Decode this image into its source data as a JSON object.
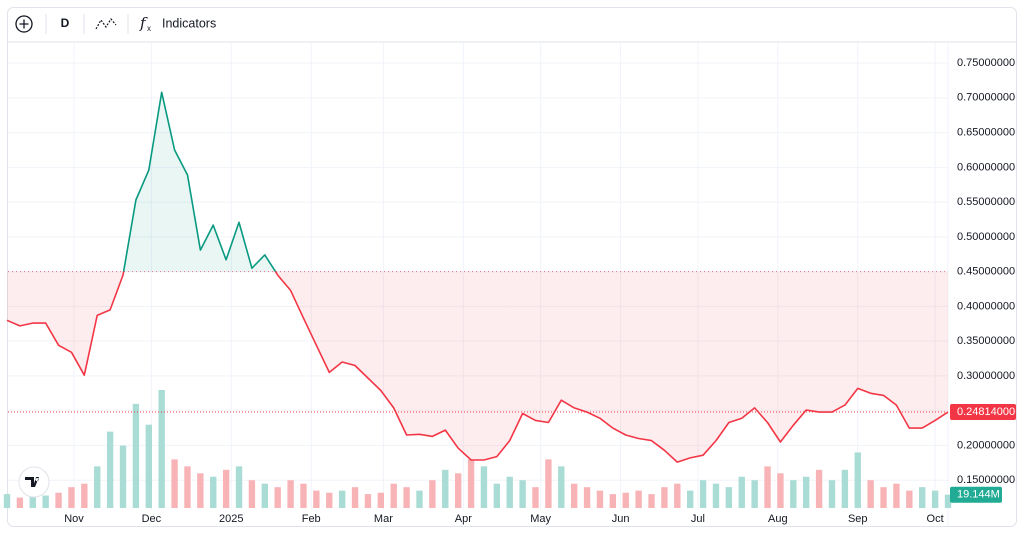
{
  "toolbar": {
    "interval": "D",
    "indicators": "Indicators"
  },
  "chart_data": {
    "type": "line",
    "x": [
      0,
      5,
      10,
      15,
      20,
      25,
      30,
      35,
      40,
      45,
      50,
      55,
      60,
      65,
      70,
      75,
      80,
      85,
      90,
      95,
      100,
      105,
      110,
      115,
      120,
      125,
      130,
      135,
      140,
      145,
      150,
      155,
      160,
      165,
      170,
      175,
      180,
      185,
      190,
      195,
      200,
      205,
      210,
      215,
      220,
      225,
      230,
      235,
      240,
      245,
      250,
      255,
      260,
      265,
      270,
      275,
      280,
      285,
      290,
      295,
      300,
      305,
      310,
      315,
      320,
      325,
      330,
      335,
      340,
      345,
      350,
      355,
      360,
      365
    ],
    "series": [
      {
        "name": "Price",
        "up_color": "#089981",
        "down_color": "#f23645",
        "values": [
          0.38,
          0.372,
          0.376,
          0.376,
          0.344,
          0.334,
          0.301,
          0.387,
          0.395,
          0.445,
          0.553,
          0.596,
          0.708,
          0.625,
          0.589,
          0.481,
          0.517,
          0.467,
          0.521,
          0.455,
          0.474,
          0.445,
          0.423,
          0.383,
          0.344,
          0.305,
          0.32,
          0.315,
          0.297,
          0.279,
          0.254,
          0.215,
          0.216,
          0.213,
          0.222,
          0.196,
          0.179,
          0.179,
          0.184,
          0.207,
          0.246,
          0.236,
          0.233,
          0.265,
          0.254,
          0.248,
          0.239,
          0.225,
          0.215,
          0.21,
          0.207,
          0.193,
          0.176,
          0.182,
          0.186,
          0.207,
          0.233,
          0.239,
          0.254,
          0.233,
          0.205,
          0.229,
          0.251,
          0.248,
          0.248,
          0.258,
          0.282,
          0.275,
          0.272,
          0.258,
          0.225,
          0.225,
          0.236,
          0.248
        ]
      },
      {
        "name": "Volume",
        "up_color": "#a8dcd4",
        "down_color": "#f7b3b5",
        "values": [
          20,
          15,
          25,
          18,
          22,
          30,
          35,
          60,
          110,
          90,
          150,
          120,
          170,
          70,
          60,
          50,
          45,
          55,
          60,
          40,
          35,
          30,
          40,
          35,
          25,
          22,
          25,
          30,
          20,
          22,
          35,
          30,
          25,
          40,
          55,
          50,
          70,
          60,
          35,
          45,
          40,
          30,
          70,
          60,
          35,
          30,
          25,
          20,
          22,
          25,
          20,
          30,
          35,
          25,
          40,
          35,
          30,
          45,
          40,
          60,
          50,
          40,
          45,
          55,
          40,
          55,
          80,
          40,
          30,
          35,
          25,
          30,
          25,
          19.144
        ]
      }
    ],
    "baseline": 0.45,
    "last_price": {
      "value": 0.24814,
      "label": "0.24814000"
    },
    "last_volume": {
      "value": 19.144,
      "label": "19.144M"
    },
    "xlim": [
      0,
      365
    ],
    "xticks": [
      {
        "value": 26,
        "label": "Nov"
      },
      {
        "value": 56,
        "label": "Dec"
      },
      {
        "value": 87,
        "label": "2025"
      },
      {
        "value": 118,
        "label": "Feb"
      },
      {
        "value": 146,
        "label": "Mar"
      },
      {
        "value": 177,
        "label": "Apr"
      },
      {
        "value": 207,
        "label": "May"
      },
      {
        "value": 238,
        "label": "Jun"
      },
      {
        "value": 268,
        "label": "Jul"
      },
      {
        "value": 299,
        "label": "Aug"
      },
      {
        "value": 330,
        "label": "Sep"
      },
      {
        "value": 360,
        "label": "Oct"
      }
    ],
    "ylim": [
      0.11,
      0.776
    ],
    "yticks": [
      {
        "value": 0.15,
        "label": "0.15000000"
      },
      {
        "value": 0.2,
        "label": "0.20000000"
      },
      {
        "value": 0.25,
        "label": "0.25000000"
      },
      {
        "value": 0.3,
        "label": "0.30000000"
      },
      {
        "value": 0.35,
        "label": "0.35000000"
      },
      {
        "value": 0.4,
        "label": "0.40000000"
      },
      {
        "value": 0.45,
        "label": "0.45000000"
      },
      {
        "value": 0.5,
        "label": "0.50000000"
      },
      {
        "value": 0.55,
        "label": "0.55000000"
      },
      {
        "value": 0.6,
        "label": "0.60000000"
      },
      {
        "value": 0.65,
        "label": "0.65000000"
      },
      {
        "value": 0.7,
        "label": "0.70000000"
      },
      {
        "value": 0.75,
        "label": "0.75000000"
      }
    ],
    "grid": true
  }
}
